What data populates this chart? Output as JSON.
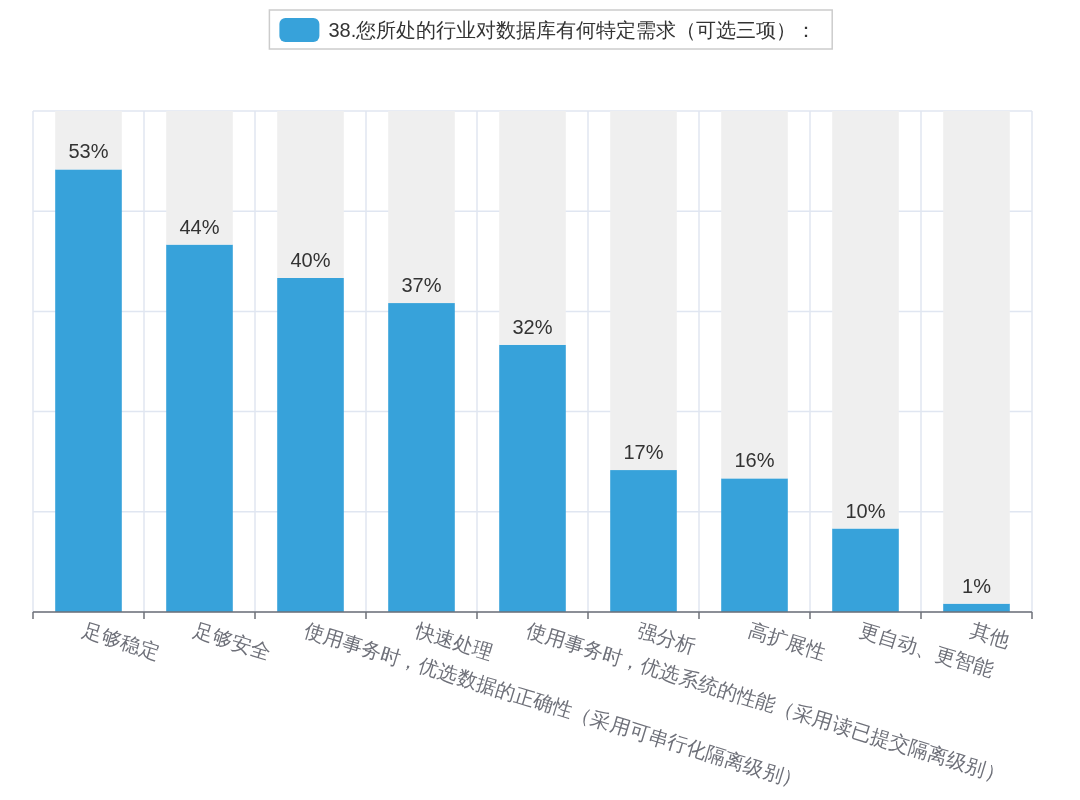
{
  "chart_data": {
    "type": "bar",
    "stacked": true,
    "categories": [
      "足够稳定",
      "足够安全",
      "使用事务时，优选数据的正确性（采用可串行化隔离级别）",
      "快速处理",
      "使用事务时，优选系统的性能（采用读已提交隔离级别）",
      "强分析",
      "高扩展性",
      "更自动、更智能",
      "其他"
    ],
    "series": [
      {
        "name": "38.您所处的行业对数据库有何特定需求（可选三项）：",
        "color": "#37a2da",
        "values": [
          53,
          44,
          40,
          37,
          32,
          17,
          16,
          10,
          1
        ],
        "value_labels": [
          "53%",
          "44%",
          "40%",
          "37%",
          "32%",
          "17%",
          "16%",
          "10%",
          "1%"
        ]
      },
      {
        "color": "#efefef",
        "values": [
          7,
          16,
          20,
          23,
          28,
          43,
          44,
          50,
          59
        ]
      }
    ],
    "ylim": [
      0,
      60
    ],
    "yticks": [
      {
        "value": 0,
        "label": null
      },
      {
        "value": 12,
        "label": null
      },
      {
        "value": 24,
        "label": null
      },
      {
        "value": 36,
        "label": null
      },
      {
        "value": 48,
        "label": null
      },
      {
        "value": 60,
        "label": null
      }
    ],
    "tick_labels": "x",
    "grid": true,
    "legend": "top"
  }
}
